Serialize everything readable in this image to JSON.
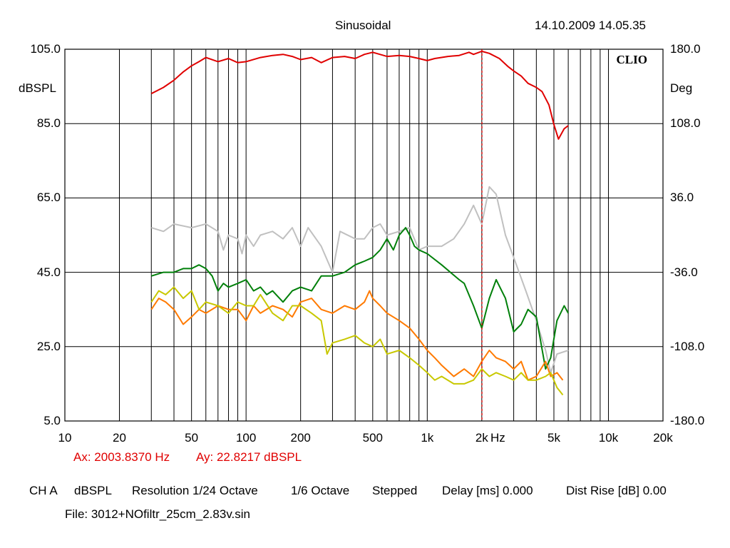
{
  "header": {
    "mode": "Sinusoidal",
    "datetime": "14.10.2009 14.05.35"
  },
  "chart_data": {
    "type": "line",
    "brand": "CLIO",
    "x_scale": "log",
    "xlim": [
      10,
      20000
    ],
    "x_ticks": [
      10,
      20,
      50,
      100,
      200,
      500,
      1000,
      2000,
      5000,
      10000,
      20000
    ],
    "x_tick_labels": [
      "10",
      "20",
      "50",
      "100",
      "200",
      "500",
      "1k",
      "2k",
      "5k",
      "10k",
      "20k"
    ],
    "x_unit": "Hz",
    "ylabel_left": "dBSPL",
    "ylim_left": [
      5,
      105
    ],
    "y_ticks_left": [
      "105.0",
      "85.0",
      "65.0",
      "45.0",
      "25.0",
      "5.0"
    ],
    "ylabel_right": "Deg",
    "ylim_right": [
      -180,
      180
    ],
    "y_ticks_right": [
      "180.0",
      "108.0",
      "36.0",
      "-36.0",
      "-108.0",
      "-180.0"
    ],
    "grid": true,
    "cursor": {
      "x": 2003.837,
      "ax_text": "Ax: 2003.8370 Hz",
      "ay_text": "Ay: 22.8217 dBSPL"
    },
    "series": [
      {
        "axis": "right",
        "color": "#e00000",
        "points": [
          [
            30,
            137
          ],
          [
            35,
            143
          ],
          [
            40,
            150
          ],
          [
            45,
            158
          ],
          [
            50,
            164
          ],
          [
            55,
            168
          ],
          [
            60,
            172
          ],
          [
            70,
            168
          ],
          [
            80,
            171
          ],
          [
            90,
            167
          ],
          [
            100,
            168
          ],
          [
            120,
            172
          ],
          [
            140,
            174
          ],
          [
            160,
            175
          ],
          [
            180,
            173
          ],
          [
            200,
            170
          ],
          [
            230,
            172
          ],
          [
            260,
            167
          ],
          [
            300,
            172
          ],
          [
            350,
            173
          ],
          [
            400,
            171
          ],
          [
            450,
            175
          ],
          [
            500,
            177
          ],
          [
            600,
            173
          ],
          [
            700,
            174
          ],
          [
            800,
            173
          ],
          [
            900,
            171
          ],
          [
            1000,
            169
          ],
          [
            1100,
            171
          ],
          [
            1300,
            173
          ],
          [
            1500,
            174
          ],
          [
            1700,
            177
          ],
          [
            1800,
            175
          ],
          [
            2000,
            178
          ],
          [
            2200,
            176
          ],
          [
            2500,
            171
          ],
          [
            2800,
            163
          ],
          [
            3000,
            159
          ],
          [
            3300,
            154
          ],
          [
            3600,
            147
          ],
          [
            4000,
            143
          ],
          [
            4300,
            139
          ],
          [
            4700,
            126
          ],
          [
            5000,
            107
          ],
          [
            5300,
            93
          ],
          [
            5700,
            103
          ],
          [
            6000,
            106
          ]
        ]
      },
      {
        "axis": "left",
        "color": "#c0c0c0",
        "points": [
          [
            30,
            57
          ],
          [
            35,
            56
          ],
          [
            40,
            58
          ],
          [
            50,
            57
          ],
          [
            60,
            58
          ],
          [
            70,
            56
          ],
          [
            75,
            51
          ],
          [
            80,
            55
          ],
          [
            90,
            54
          ],
          [
            95,
            50
          ],
          [
            100,
            55
          ],
          [
            110,
            52
          ],
          [
            120,
            55
          ],
          [
            140,
            56
          ],
          [
            160,
            54
          ],
          [
            180,
            57
          ],
          [
            200,
            52
          ],
          [
            220,
            57
          ],
          [
            260,
            52
          ],
          [
            300,
            45
          ],
          [
            330,
            56
          ],
          [
            400,
            54
          ],
          [
            450,
            54
          ],
          [
            500,
            57
          ],
          [
            550,
            58
          ],
          [
            600,
            55
          ],
          [
            700,
            56
          ],
          [
            800,
            57
          ],
          [
            900,
            51
          ],
          [
            1000,
            52
          ],
          [
            1200,
            52
          ],
          [
            1400,
            54
          ],
          [
            1600,
            58
          ],
          [
            1800,
            63
          ],
          [
            2000,
            58
          ],
          [
            2200,
            68
          ],
          [
            2400,
            66
          ],
          [
            2700,
            55
          ],
          [
            3000,
            49
          ],
          [
            3500,
            40
          ],
          [
            4000,
            32
          ],
          [
            4500,
            24
          ],
          [
            4800,
            18
          ],
          [
            5200,
            23
          ],
          [
            6000,
            24
          ]
        ]
      },
      {
        "axis": "left",
        "color": "#00800a",
        "points": [
          [
            30,
            44
          ],
          [
            35,
            45
          ],
          [
            40,
            45
          ],
          [
            45,
            46
          ],
          [
            50,
            46
          ],
          [
            55,
            47
          ],
          [
            60,
            46
          ],
          [
            65,
            44
          ],
          [
            70,
            40
          ],
          [
            75,
            42
          ],
          [
            80,
            41
          ],
          [
            90,
            42
          ],
          [
            100,
            43
          ],
          [
            110,
            40
          ],
          [
            120,
            41
          ],
          [
            130,
            39
          ],
          [
            140,
            40
          ],
          [
            160,
            37
          ],
          [
            180,
            40
          ],
          [
            200,
            41
          ],
          [
            230,
            40
          ],
          [
            260,
            44
          ],
          [
            300,
            44
          ],
          [
            350,
            45
          ],
          [
            400,
            47
          ],
          [
            450,
            48
          ],
          [
            500,
            49
          ],
          [
            550,
            51
          ],
          [
            600,
            54
          ],
          [
            650,
            51
          ],
          [
            700,
            55
          ],
          [
            760,
            57
          ],
          [
            800,
            55
          ],
          [
            850,
            52
          ],
          [
            900,
            51
          ],
          [
            1000,
            50
          ],
          [
            1200,
            47
          ],
          [
            1500,
            43
          ],
          [
            1600,
            42
          ],
          [
            1800,
            36
          ],
          [
            2000,
            30
          ],
          [
            2200,
            38
          ],
          [
            2400,
            43
          ],
          [
            2700,
            38
          ],
          [
            3000,
            29
          ],
          [
            3300,
            31
          ],
          [
            3600,
            35
          ],
          [
            4000,
            33
          ],
          [
            4500,
            19
          ],
          [
            4800,
            22
          ],
          [
            5200,
            32
          ],
          [
            5700,
            36
          ],
          [
            6000,
            34
          ]
        ]
      },
      {
        "axis": "left",
        "color": "#ff7a00",
        "points": [
          [
            30,
            35
          ],
          [
            33,
            38
          ],
          [
            36,
            37
          ],
          [
            40,
            35
          ],
          [
            45,
            31
          ],
          [
            50,
            33
          ],
          [
            55,
            35
          ],
          [
            60,
            34
          ],
          [
            70,
            36
          ],
          [
            80,
            35
          ],
          [
            90,
            35
          ],
          [
            100,
            32
          ],
          [
            110,
            36
          ],
          [
            120,
            34
          ],
          [
            140,
            36
          ],
          [
            160,
            35
          ],
          [
            180,
            33
          ],
          [
            200,
            37
          ],
          [
            230,
            38
          ],
          [
            260,
            35
          ],
          [
            300,
            34
          ],
          [
            350,
            36
          ],
          [
            400,
            35
          ],
          [
            450,
            37
          ],
          [
            480,
            40
          ],
          [
            500,
            38
          ],
          [
            550,
            36
          ],
          [
            600,
            34
          ],
          [
            700,
            32
          ],
          [
            800,
            30
          ],
          [
            900,
            27
          ],
          [
            1000,
            24
          ],
          [
            1100,
            22
          ],
          [
            1200,
            20
          ],
          [
            1400,
            17
          ],
          [
            1600,
            19
          ],
          [
            1800,
            17
          ],
          [
            2000,
            21
          ],
          [
            2200,
            24
          ],
          [
            2400,
            22
          ],
          [
            2700,
            21
          ],
          [
            3000,
            19
          ],
          [
            3300,
            21
          ],
          [
            3600,
            16
          ],
          [
            4000,
            17
          ],
          [
            4500,
            21
          ],
          [
            4800,
            17
          ],
          [
            5200,
            18
          ],
          [
            5600,
            16
          ]
        ]
      },
      {
        "axis": "left",
        "color": "#c8c800",
        "points": [
          [
            30,
            37
          ],
          [
            33,
            40
          ],
          [
            36,
            39
          ],
          [
            40,
            41
          ],
          [
            45,
            38
          ],
          [
            50,
            40
          ],
          [
            55,
            35
          ],
          [
            60,
            37
          ],
          [
            70,
            36
          ],
          [
            80,
            34
          ],
          [
            90,
            37
          ],
          [
            100,
            36
          ],
          [
            110,
            36
          ],
          [
            120,
            39
          ],
          [
            140,
            34
          ],
          [
            160,
            32
          ],
          [
            180,
            36
          ],
          [
            200,
            36
          ],
          [
            230,
            34
          ],
          [
            260,
            32
          ],
          [
            280,
            23
          ],
          [
            300,
            26
          ],
          [
            350,
            27
          ],
          [
            400,
            28
          ],
          [
            450,
            26
          ],
          [
            500,
            25
          ],
          [
            550,
            27
          ],
          [
            600,
            23
          ],
          [
            700,
            24
          ],
          [
            800,
            22
          ],
          [
            900,
            20
          ],
          [
            1000,
            18
          ],
          [
            1100,
            16
          ],
          [
            1200,
            17
          ],
          [
            1400,
            15
          ],
          [
            1600,
            15
          ],
          [
            1800,
            16
          ],
          [
            2000,
            19
          ],
          [
            2200,
            17
          ],
          [
            2400,
            18
          ],
          [
            2700,
            17
          ],
          [
            3000,
            16
          ],
          [
            3300,
            18
          ],
          [
            3600,
            16
          ],
          [
            4000,
            16
          ],
          [
            4500,
            17
          ],
          [
            4800,
            18
          ],
          [
            5200,
            14
          ],
          [
            5600,
            12
          ]
        ]
      }
    ]
  },
  "footer": {
    "channel": "CH A",
    "unit": "dBSPL",
    "resolution": "Resolution 1/24 Octave",
    "smoothing": "1/6 Octave",
    "sweep": "Stepped",
    "delay": "Delay [ms] 0.000",
    "dist_rise": "Dist Rise [dB] 0.00",
    "file": "File: 3012+NOfiltr_25cm_2.83v.sin"
  }
}
